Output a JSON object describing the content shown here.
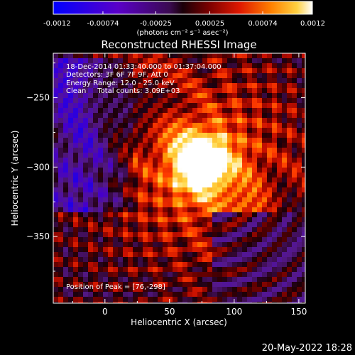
{
  "colorbar": {
    "ticks": [
      "-0.0012",
      "-0.00074",
      "-0.00025",
      "0.00025",
      "0.00074",
      "0.0012"
    ],
    "tick_values": [
      -0.0012,
      -0.00074,
      -0.00025,
      0.00025,
      0.00074,
      0.0012
    ],
    "range": [
      -0.0012,
      0.0012
    ],
    "unit_label": "(photons cm⁻² s⁻¹ asec⁻²)",
    "colors": [
      "#0000ff",
      "#5a00c8",
      "#5a1a8c",
      "#1a0014",
      "#5a0000",
      "#b01000",
      "#ff3000",
      "#ff8000",
      "#ffd040",
      "#ffffff"
    ]
  },
  "chart_data": {
    "type": "heatmap",
    "title": "Reconstructed RHESSI Image",
    "xlabel": "Heliocentric X (arcsec)",
    "ylabel": "Heliocentric Y (arcsec)",
    "xlim": [
      -40,
      155
    ],
    "ylim": [
      -398,
      -218
    ],
    "xticks": [
      0,
      50,
      100,
      150
    ],
    "yticks": [
      -250,
      -300,
      -350
    ],
    "peak": [
      76,
      -298
    ],
    "annotations": [
      "18-Dec-2014 01:33:40.000 to 01:37:04.000",
      "Detectors: 3F 6F 7F 9F, Att 0",
      "Energy Range: 12.0 - 25.0 keV",
      "Clean     Total counts: 3.09E+03"
    ],
    "peak_label": "Position of Peak = [76,-298]"
  },
  "footer": {
    "timestamp": "20-May-2022 18:28"
  }
}
